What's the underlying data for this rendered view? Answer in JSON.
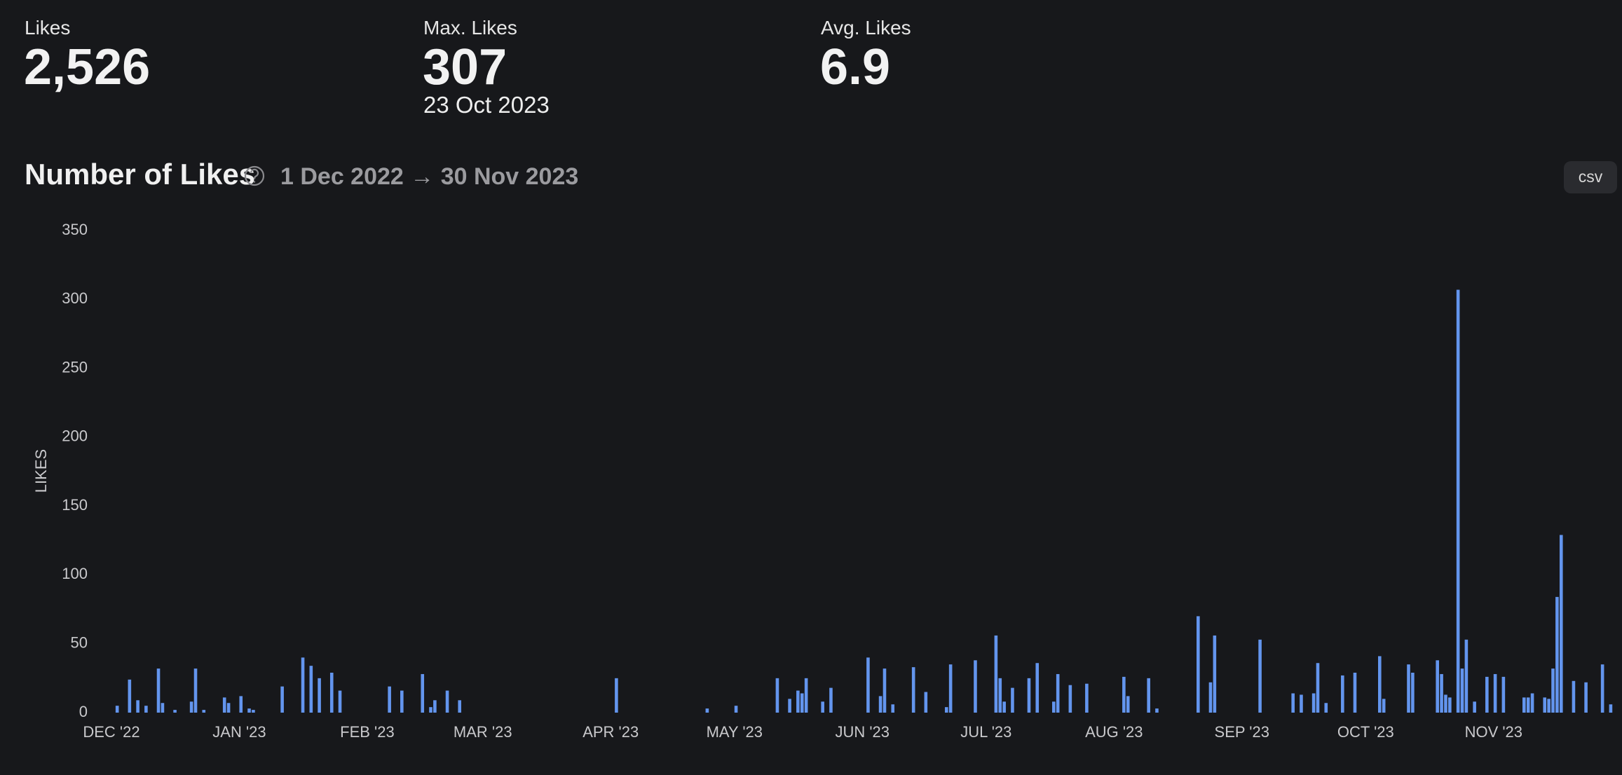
{
  "stats": [
    {
      "label": "Likes",
      "value": "2,526"
    },
    {
      "label": "Max. Likes",
      "value": "307",
      "note": "23 Oct 2023"
    },
    {
      "label": "Avg. Likes",
      "value": "6.9"
    }
  ],
  "export_button": "csv",
  "chart_data": {
    "type": "bar",
    "title": "Number of Likes",
    "subtitle": "1 Dec 2022 → 30 Nov 2023",
    "y_label": "LIKES",
    "color": "#6395ee",
    "grid": false,
    "ylim": [
      0,
      350
    ],
    "yticks": [
      0,
      50,
      100,
      150,
      200,
      250,
      300,
      350
    ],
    "categories": [
      "DEC '22",
      null,
      null,
      null,
      null,
      null,
      null,
      null,
      null,
      null,
      null,
      null,
      null,
      null,
      null,
      null,
      null,
      null,
      null,
      null,
      null,
      null,
      null,
      null,
      null,
      null,
      null,
      null,
      null,
      null,
      null,
      "JAN '23",
      null,
      null,
      null,
      null,
      null,
      null,
      null,
      null,
      null,
      null,
      null,
      null,
      null,
      null,
      null,
      null,
      null,
      null,
      null,
      null,
      null,
      null,
      null,
      null,
      null,
      null,
      null,
      null,
      null,
      null,
      "FEB '23",
      null,
      null,
      null,
      null,
      null,
      null,
      null,
      null,
      null,
      null,
      null,
      null,
      null,
      null,
      null,
      null,
      null,
      null,
      null,
      null,
      null,
      null,
      null,
      null,
      null,
      null,
      null,
      "MAR '23",
      null,
      null,
      null,
      null,
      null,
      null,
      null,
      null,
      null,
      null,
      null,
      null,
      null,
      null,
      null,
      null,
      null,
      null,
      null,
      null,
      null,
      null,
      null,
      null,
      null,
      null,
      null,
      null,
      null,
      null,
      "APR '23",
      null,
      null,
      null,
      null,
      null,
      null,
      null,
      null,
      null,
      null,
      null,
      null,
      null,
      null,
      null,
      null,
      null,
      null,
      null,
      null,
      null,
      null,
      null,
      null,
      null,
      null,
      null,
      null,
      null,
      "MAY '23",
      null,
      null,
      null,
      null,
      null,
      null,
      null,
      null,
      null,
      null,
      null,
      null,
      null,
      null,
      null,
      null,
      null,
      null,
      null,
      null,
      null,
      null,
      null,
      null,
      null,
      null,
      null,
      null,
      null,
      null,
      "JUN '23",
      null,
      null,
      null,
      null,
      null,
      null,
      null,
      null,
      null,
      null,
      null,
      null,
      null,
      null,
      null,
      null,
      null,
      null,
      null,
      null,
      null,
      null,
      null,
      null,
      null,
      null,
      null,
      null,
      null,
      "JUL '23",
      null,
      null,
      null,
      null,
      null,
      null,
      null,
      null,
      null,
      null,
      null,
      null,
      null,
      null,
      null,
      null,
      null,
      null,
      null,
      null,
      null,
      null,
      null,
      null,
      null,
      null,
      null,
      null,
      null,
      null,
      "AUG '23",
      null,
      null,
      null,
      null,
      null,
      null,
      null,
      null,
      null,
      null,
      null,
      null,
      null,
      null,
      null,
      null,
      null,
      null,
      null,
      null,
      null,
      null,
      null,
      null,
      null,
      null,
      null,
      null,
      null,
      null,
      "SEP '23",
      null,
      null,
      null,
      null,
      null,
      null,
      null,
      null,
      null,
      null,
      null,
      null,
      null,
      null,
      null,
      null,
      null,
      null,
      null,
      null,
      null,
      null,
      null,
      null,
      null,
      null,
      null,
      null,
      null,
      "OCT '23",
      null,
      null,
      null,
      null,
      null,
      null,
      null,
      null,
      null,
      null,
      null,
      null,
      null,
      null,
      null,
      null,
      null,
      null,
      null,
      null,
      null,
      null,
      null,
      null,
      null,
      null,
      null,
      null,
      null,
      null,
      "NOV '23",
      null,
      null,
      null,
      null,
      null,
      null,
      null,
      null,
      null,
      null,
      null,
      null,
      null,
      null,
      null,
      null,
      null,
      null,
      null,
      null,
      null,
      null,
      null,
      null,
      null,
      null,
      null,
      null,
      null
    ],
    "values": [
      0,
      5,
      0,
      0,
      24,
      0,
      9,
      0,
      5,
      0,
      0,
      32,
      7,
      0,
      0,
      2,
      0,
      0,
      0,
      8,
      32,
      0,
      2,
      0,
      0,
      0,
      0,
      11,
      7,
      0,
      0,
      12,
      0,
      3,
      2,
      0,
      0,
      0,
      0,
      0,
      0,
      19,
      0,
      0,
      0,
      0,
      40,
      0,
      34,
      0,
      25,
      0,
      0,
      29,
      0,
      16,
      0,
      0,
      0,
      0,
      0,
      0,
      0,
      0,
      0,
      0,
      0,
      19,
      0,
      0,
      16,
      0,
      0,
      0,
      0,
      28,
      0,
      4,
      9,
      0,
      0,
      16,
      0,
      0,
      9,
      0,
      0,
      0,
      0,
      0,
      0,
      0,
      0,
      0,
      0,
      0,
      0,
      0,
      0,
      0,
      0,
      0,
      0,
      0,
      0,
      0,
      0,
      0,
      0,
      0,
      0,
      0,
      0,
      0,
      0,
      0,
      0,
      0,
      0,
      0,
      0,
      0,
      25,
      0,
      0,
      0,
      0,
      0,
      0,
      0,
      0,
      0,
      0,
      0,
      0,
      0,
      0,
      0,
      0,
      0,
      0,
      0,
      0,
      0,
      3,
      0,
      0,
      0,
      0,
      0,
      0,
      5,
      0,
      0,
      0,
      0,
      0,
      0,
      0,
      0,
      0,
      25,
      0,
      0,
      10,
      0,
      16,
      14,
      25,
      0,
      0,
      0,
      8,
      0,
      18,
      0,
      0,
      0,
      0,
      0,
      0,
      0,
      0,
      40,
      0,
      0,
      12,
      32,
      0,
      6,
      0,
      0,
      0,
      0,
      33,
      0,
      0,
      15,
      0,
      0,
      0,
      0,
      4,
      35,
      0,
      0,
      0,
      0,
      0,
      38,
      0,
      0,
      0,
      0,
      56,
      25,
      8,
      0,
      18,
      0,
      0,
      0,
      25,
      0,
      36,
      0,
      0,
      0,
      8,
      28,
      0,
      0,
      20,
      0,
      0,
      0,
      21,
      0,
      0,
      0,
      0,
      0,
      0,
      0,
      0,
      26,
      12,
      0,
      0,
      0,
      0,
      25,
      0,
      3,
      0,
      0,
      0,
      0,
      0,
      0,
      0,
      0,
      0,
      70,
      0,
      0,
      22,
      56,
      0,
      0,
      0,
      0,
      0,
      0,
      0,
      0,
      0,
      0,
      53,
      0,
      0,
      0,
      0,
      0,
      0,
      0,
      14,
      0,
      13,
      0,
      0,
      14,
      36,
      0,
      7,
      0,
      0,
      0,
      27,
      0,
      0,
      29,
      0,
      0,
      0,
      0,
      0,
      41,
      10,
      0,
      0,
      0,
      0,
      0,
      35,
      29,
      0,
      0,
      0,
      0,
      0,
      38,
      28,
      13,
      11,
      0,
      307,
      32,
      53,
      0,
      8,
      0,
      0,
      26,
      0,
      28,
      0,
      26,
      0,
      0,
      0,
      0,
      11,
      11,
      14,
      0,
      0,
      11,
      10,
      32,
      84,
      129,
      0,
      0,
      23,
      0,
      0,
      22,
      0,
      0,
      0,
      35,
      0,
      6,
      0
    ]
  }
}
